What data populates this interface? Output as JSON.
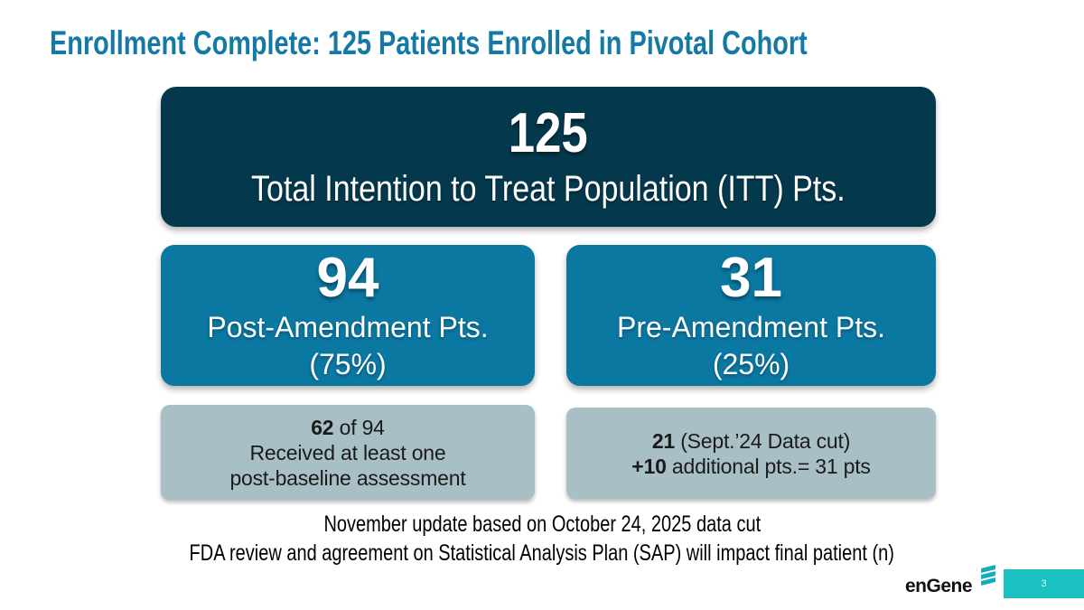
{
  "slide": {
    "title": "Enrollment Complete: 125 Patients Enrolled in Pivotal Cohort",
    "page_number": "3"
  },
  "boxes": {
    "itt": {
      "value": "125",
      "label": "Total Intention to Treat Population (ITT) Pts."
    },
    "post_amendment": {
      "value": "94",
      "label": "Post-Amendment Pts.",
      "percent": "(75%)"
    },
    "pre_amendment": {
      "value": "31",
      "label": "Pre-Amendment Pts.",
      "percent": "(25%)"
    },
    "post_amendment_note": {
      "line1_bold": "62",
      "line1_rest": " of 94",
      "line2": "Received at least one",
      "line3": "post-baseline assessment"
    },
    "pre_amendment_note": {
      "line1_bold": "21",
      "line1_rest": " (Sept.’24 Data cut)",
      "line2_bold": "+10",
      "line2_rest": " additional pts.= 31 pts"
    }
  },
  "footer": {
    "line1": "November update based on October 24, 2025 data cut",
    "line2": "FDA review and agreement on Statistical Analysis Plan (SAP) will impact final patient (n)"
  },
  "logo": {
    "wordmark": "enGene",
    "icon": "stacked-layers-icon"
  },
  "colors": {
    "title_text": "#1579A6",
    "dark_box": "#04394D",
    "teal_box": "#0B78A2",
    "gray_box": "#A8C0C5",
    "note_text": "#1A1A1A",
    "logo_teal": "#14ABBA",
    "page_bar": "#19C2C1"
  }
}
